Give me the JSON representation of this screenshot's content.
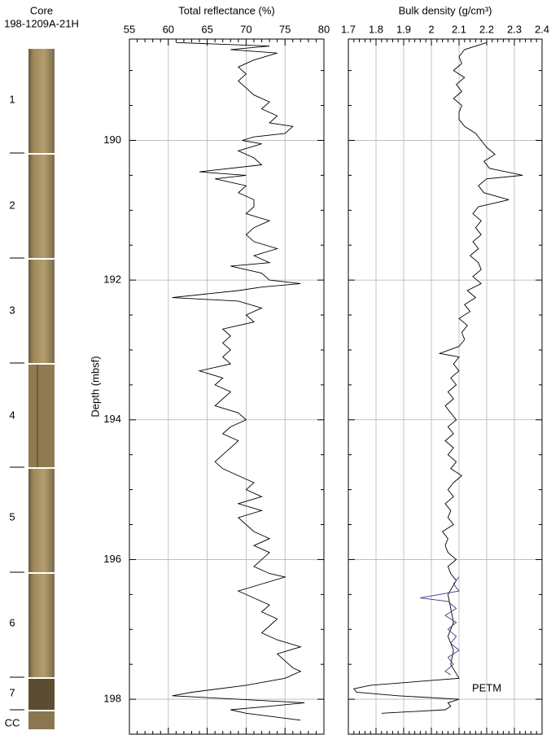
{
  "core": {
    "title": "Core",
    "id": "198-1209A-21H",
    "sections": [
      "1",
      "2",
      "3",
      "4",
      "5",
      "6",
      "7",
      "CC"
    ]
  },
  "chart_data": [
    {
      "type": "line",
      "title": "Total reflectance (%)",
      "ylabel": "Depth (mbsf)",
      "xlim": [
        55,
        80
      ],
      "xticks": [
        55,
        60,
        65,
        70,
        75,
        80
      ],
      "xticks_minor": [
        56,
        57,
        58,
        59,
        61,
        62,
        63,
        64,
        66,
        67,
        68,
        69,
        71,
        72,
        73,
        74,
        76,
        77,
        78,
        79
      ],
      "ylim": [
        188.55,
        198.5
      ],
      "yticks": [
        190,
        192,
        194,
        196,
        198
      ],
      "yticks_minor": [
        189,
        189.5,
        190.5,
        191,
        191.5,
        192.5,
        193,
        193.5,
        194.5,
        195,
        195.5,
        196.5,
        197,
        197.5,
        198.5
      ],
      "grid": true,
      "series": [
        {
          "color": "#000000",
          "y": [
            188.6,
            188.65,
            188.7,
            188.75,
            188.85,
            188.95,
            189.05,
            189.15,
            189.25,
            189.35,
            189.45,
            189.55,
            189.65,
            189.75,
            189.8,
            189.9,
            189.95,
            190.0,
            190.05,
            190.15,
            190.25,
            190.35,
            190.45,
            190.5,
            190.55,
            190.65,
            190.75,
            190.85,
            190.95,
            191.05,
            191.15,
            191.25,
            191.35,
            191.45,
            191.55,
            191.65,
            191.75,
            191.8,
            191.9,
            192.0,
            192.05,
            192.1,
            192.15,
            192.25,
            192.3,
            192.4,
            192.5,
            192.6,
            192.7,
            192.8,
            192.9,
            193.0,
            193.1,
            193.2,
            193.3,
            193.4,
            193.5,
            193.6,
            193.7,
            193.8,
            193.9,
            194.0,
            194.1,
            194.2,
            194.3,
            194.4,
            194.5,
            194.6,
            194.7,
            194.8,
            194.9,
            195.0,
            195.1,
            195.2,
            195.3,
            195.4,
            195.5,
            195.6,
            195.7,
            195.8,
            195.9,
            196.0,
            196.1,
            196.2,
            196.25,
            196.35,
            196.45,
            196.55,
            196.65,
            196.75,
            196.85,
            196.95,
            197.05,
            197.15,
            197.25,
            197.35,
            197.45,
            197.55,
            197.6,
            197.7,
            197.8,
            197.9,
            197.95,
            198.0,
            198.05,
            198.1,
            198.15,
            198.2,
            198.3
          ],
          "values": [
            61,
            73,
            68,
            74,
            71,
            69,
            70,
            69,
            70,
            71,
            73,
            72,
            74,
            73,
            76,
            75,
            71,
            69.5,
            72,
            69,
            71,
            72,
            64,
            70,
            66,
            70,
            69,
            71,
            71,
            70,
            73,
            71,
            70,
            71,
            74,
            71,
            73,
            68,
            72,
            73,
            77,
            72,
            69,
            60.5,
            69,
            72,
            70,
            71,
            67,
            68,
            67,
            68,
            67,
            68,
            64,
            67,
            66,
            68,
            67,
            66,
            69,
            70,
            68,
            67,
            69,
            68,
            67,
            66,
            67,
            69,
            71,
            70,
            72,
            69,
            72,
            69,
            70,
            71,
            73,
            71,
            73,
            72,
            71,
            73,
            75,
            72,
            69,
            71,
            73,
            72,
            74,
            73,
            72,
            74,
            77,
            74,
            75,
            76,
            77,
            75,
            70,
            63,
            60.5,
            69,
            77.5,
            73,
            68,
            70,
            77
          ]
        }
      ]
    },
    {
      "type": "line",
      "title": "Bulk density (g/cm³)",
      "xlim": [
        1.7,
        2.4
      ],
      "xticks": [
        1.7,
        1.8,
        1.9,
        2,
        2.1,
        2.2,
        2.3,
        2.4
      ],
      "xticks_minor": [
        1.72,
        1.74,
        1.76,
        1.78,
        1.82,
        1.84,
        1.86,
        1.88,
        1.92,
        1.94,
        1.96,
        1.98,
        2.02,
        2.04,
        2.06,
        2.08,
        2.12,
        2.14,
        2.16,
        2.18,
        2.22,
        2.24,
        2.26,
        2.28,
        2.32,
        2.34,
        2.36,
        2.38
      ],
      "ylim": [
        188.55,
        198.5
      ],
      "yticks": [
        190,
        192,
        194,
        196,
        198
      ],
      "yticks_minor": [
        189,
        189.5,
        190.5,
        191,
        191.5,
        192.5,
        193,
        193.5,
        194.5,
        195,
        195.5,
        196.5,
        197,
        197.5,
        198.5
      ],
      "grid": true,
      "annotation": "PETM",
      "annotation_x": 2.2,
      "annotation_y": 197.85,
      "series": [
        {
          "color": "#000000",
          "y": [
            188.6,
            188.7,
            188.8,
            188.9,
            189.0,
            189.1,
            189.2,
            189.3,
            189.4,
            189.5,
            189.6,
            189.7,
            189.8,
            189.9,
            190.0,
            190.1,
            190.2,
            190.3,
            190.4,
            190.5,
            190.55,
            190.65,
            190.75,
            190.85,
            190.95,
            191.05,
            191.15,
            191.25,
            191.35,
            191.45,
            191.55,
            191.65,
            191.75,
            191.85,
            191.95,
            192.05,
            192.15,
            192.25,
            192.35,
            192.45,
            192.55,
            192.65,
            192.75,
            192.85,
            192.95,
            193.05,
            193.1,
            193.2,
            193.3,
            193.4,
            193.5,
            193.6,
            193.7,
            193.8,
            193.9,
            194.0,
            194.1,
            194.2,
            194.3,
            194.4,
            194.5,
            194.6,
            194.7,
            194.8,
            194.9,
            195.0,
            195.1,
            195.2,
            195.3,
            195.4,
            195.5,
            195.6,
            195.7,
            195.8,
            195.9,
            196.0,
            196.1,
            196.2,
            196.3,
            196.5,
            196.7,
            196.9,
            197.1,
            197.3,
            197.5,
            197.7,
            197.8,
            197.85,
            197.9,
            197.95,
            198.0,
            198.05,
            198.1,
            198.15,
            198.2
          ],
          "values": [
            2.2,
            2.12,
            2.1,
            2.11,
            2.08,
            2.12,
            2.09,
            2.11,
            2.08,
            2.11,
            2.1,
            2.1,
            2.12,
            2.16,
            2.18,
            2.2,
            2.23,
            2.19,
            2.21,
            2.33,
            2.2,
            2.17,
            2.19,
            2.28,
            2.17,
            2.15,
            2.18,
            2.16,
            2.18,
            2.15,
            2.17,
            2.14,
            2.17,
            2.18,
            2.15,
            2.18,
            2.13,
            2.16,
            2.12,
            2.14,
            2.1,
            2.13,
            2.11,
            2.12,
            2.1,
            2.03,
            2.1,
            2.08,
            2.1,
            2.07,
            2.09,
            2.06,
            2.08,
            2.05,
            2.07,
            2.09,
            2.06,
            2.08,
            2.05,
            2.08,
            2.06,
            2.09,
            2.07,
            2.11,
            2.08,
            2.06,
            2.08,
            2.05,
            2.07,
            2.06,
            2.08,
            2.04,
            2.06,
            2.05,
            2.06,
            2.09,
            2.06,
            2.07,
            2.09,
            2.06,
            2.07,
            2.08,
            2.06,
            2.08,
            2.07,
            2.1,
            1.78,
            1.72,
            1.73,
            1.88,
            2.1,
            2.06,
            2.07,
            2.05,
            1.82
          ]
        },
        {
          "color": "#3a3a8c",
          "y": [
            196.25,
            196.35,
            196.45,
            196.55,
            196.6,
            196.7,
            196.8,
            196.9,
            197.0,
            197.1,
            197.2,
            197.3,
            197.4,
            197.5,
            197.6,
            197.65
          ],
          "values": [
            2.1,
            2.08,
            2.1,
            1.96,
            2.06,
            2.09,
            2.05,
            2.09,
            2.06,
            2.09,
            2.07,
            2.1,
            2.06,
            2.08,
            2.05,
            2.07
          ]
        }
      ]
    }
  ]
}
